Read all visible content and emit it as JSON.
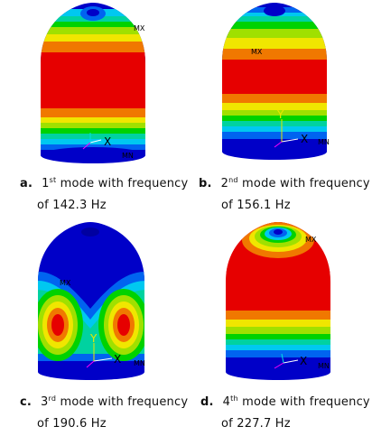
{
  "panels": [
    {
      "letter": "a.",
      "mode_number": "1",
      "ordinal_suffix": "st",
      "line1_rest": "mode with frequency",
      "line2": "of 142.3 Hz",
      "mx_label": "MX",
      "mn_label": "MN",
      "axis_x": "X",
      "axis_y": "",
      "shape": "bands-mid"
    },
    {
      "letter": "b.",
      "mode_number": "2",
      "ordinal_suffix": "nd",
      "line1_rest": "mode with frequency",
      "line2": "of 156.1 Hz",
      "mx_label": "MX",
      "mn_label": "MN",
      "axis_x": "X",
      "axis_y": "Y",
      "shape": "bands-two"
    },
    {
      "letter": "c.",
      "mode_number": "3",
      "ordinal_suffix": "rd",
      "line1_rest": "mode with frequency",
      "line2": "of 190.6 Hz",
      "mx_label": "MX",
      "mn_label": "MN",
      "axis_x": "X",
      "axis_y": "Y",
      "shape": "lobes"
    },
    {
      "letter": "d.",
      "mode_number": "4",
      "ordinal_suffix": "th",
      "line1_rest": "mode with frequency",
      "line2": "of 227.7 Hz",
      "mx_label": "MX",
      "mn_label": "MN",
      "axis_x": "X",
      "axis_y": "",
      "shape": "bands-top"
    }
  ],
  "colors": {
    "red": "#e60000",
    "orange": "#f07800",
    "yellow": "#f0e600",
    "ygreen": "#a0e000",
    "green": "#00d200",
    "teal": "#00d2a0",
    "cyan": "#00c8f0",
    "blue": "#0064f0",
    "navy": "#0000c8"
  }
}
